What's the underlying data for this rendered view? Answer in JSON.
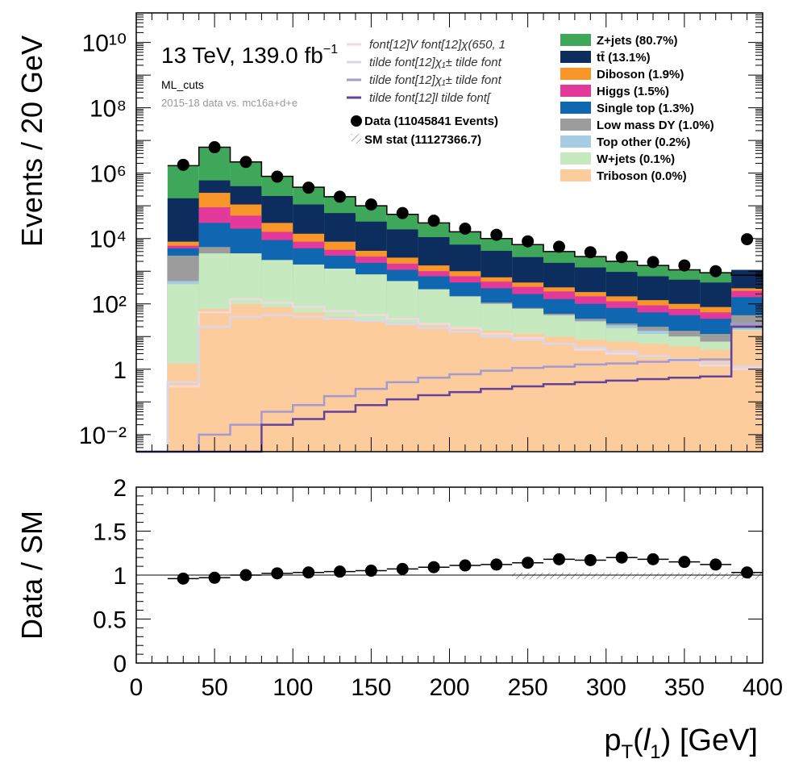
{
  "chart_data": [
    {
      "type": "histogram",
      "scale": "log",
      "ylabel": "Events / 20 GeV",
      "xlabel": "p_T(l_1) [GeV]",
      "xlim": [
        0,
        400
      ],
      "ylim": [
        0.003,
        80000000000
      ],
      "annotations": {
        "energy_lumi": "13 TeV, 139.0 fb⁻¹",
        "region": "ML_cuts",
        "dataset": "2015-18 data vs. mc16a+d+e"
      },
      "bin_edges": [
        0,
        20,
        40,
        60,
        80,
        100,
        120,
        140,
        160,
        180,
        200,
        220,
        240,
        260,
        280,
        300,
        320,
        340,
        360,
        380,
        400
      ],
      "stack_order_bottom_to_top": [
        "Triboson",
        "W+jets",
        "Top other",
        "Low mass DY",
        "Single top",
        "Higgs",
        "Diboson",
        "tt",
        "Z+jets"
      ],
      "stack": [
        {
          "name": "Z+jets (80.7%)",
          "key": "Z+jets",
          "color": "#3fa75a",
          "totals": [
            null,
            1700000,
            6200000,
            2200000,
            800000,
            370000,
            190000,
            100000,
            55000,
            30000,
            16000,
            10000,
            6500,
            4000,
            2800,
            2000,
            1500,
            1100,
            900,
            750
          ]
        },
        {
          "name": "tt̄ (13.1%)",
          "key": "tt",
          "color": "#0d2d5e",
          "totals": [
            null,
            170000,
            600000,
            400000,
            200000,
            110000,
            60000,
            33000,
            19000,
            11000,
            6500,
            4200,
            2700,
            1800,
            1300,
            950,
            700,
            550,
            450,
            1100
          ]
        },
        {
          "name": "Diboson (1.9%)",
          "key": "Diboson",
          "color": "#f8962a",
          "totals": [
            null,
            8000,
            250000,
            110000,
            30000,
            14000,
            8000,
            4200,
            2600,
            1500,
            1000,
            650,
            450,
            320,
            230,
            170,
            130,
            100,
            80,
            300
          ]
        },
        {
          "name": "Higgs (1.5%)",
          "key": "Higgs",
          "color": "#e2399a",
          "totals": [
            null,
            6000,
            90000,
            50000,
            16000,
            8000,
            4500,
            2800,
            1700,
            1000,
            700,
            480,
            330,
            240,
            170,
            120,
            90,
            70,
            55,
            250
          ]
        },
        {
          "name": "Single top (1.3%)",
          "key": "Single top",
          "color": "#0e67b0",
          "totals": [
            null,
            5000,
            30000,
            20000,
            9000,
            5000,
            3000,
            1800,
            1100,
            700,
            450,
            300,
            200,
            140,
            100,
            75,
            55,
            45,
            35,
            160
          ]
        },
        {
          "name": "Low mass DY (1.0%)",
          "key": "Low mass DY",
          "color": "#9c9c9c",
          "totals": [
            null,
            3000,
            5500,
            3500,
            2000,
            1400,
            900,
            650,
            430,
            280,
            170,
            110,
            75,
            50,
            35,
            25,
            20,
            15,
            12,
            45
          ]
        },
        {
          "name": "Top other (0.2%)",
          "key": "Top other",
          "color": "#a6cde4",
          "totals": [
            null,
            500,
            900,
            800,
            600,
            500,
            400,
            300,
            230,
            170,
            120,
            90,
            60,
            45,
            30,
            22,
            15,
            10,
            6,
            18
          ]
        },
        {
          "name": "W+jets (0.1%)",
          "key": "W+jets",
          "color": "#c7e9c0",
          "totals": [
            null,
            400,
            3500,
            3500,
            2200,
            1600,
            1200,
            800,
            500,
            280,
            170,
            100,
            70,
            45,
            28,
            18,
            12,
            10,
            7,
            16
          ]
        },
        {
          "name": "Triboson (0.0%)",
          "key": "Triboson",
          "color": "#fdcc9c",
          "totals": [
            null,
            1.5,
            70,
            100,
            80,
            55,
            40,
            30,
            25,
            22,
            18,
            15,
            12,
            10,
            8,
            7,
            6,
            5,
            4,
            15
          ]
        }
      ],
      "data_series": {
        "name": "Data (11045841 Events)",
        "x": [
          30,
          50,
          70,
          90,
          110,
          130,
          150,
          170,
          190,
          210,
          230,
          250,
          270,
          290,
          310,
          330,
          350,
          370,
          390
        ],
        "y": [
          1800000,
          6200000,
          2200000,
          780000,
          360000,
          190000,
          110000,
          60000,
          35000,
          20000,
          13000,
          8200,
          5600,
          3800,
          2700,
          1900,
          1500,
          1000,
          9500
        ]
      },
      "sm_stat": {
        "name": "SM stat (11127366.7)"
      },
      "signals": [
        {
          "name": "font[12]V   font[12]χ(650, 1",
          "color": "#f2d9e0",
          "values": [
            null,
            0.3,
            55,
            140,
            110,
            80,
            60,
            45,
            35,
            25,
            18,
            12,
            9,
            6,
            4,
            3,
            2.5,
            1.8,
            1.3,
            1.0
          ]
        },
        {
          "name": "tilde   font[12]χ₁±   tilde   font",
          "color": "#dcd6ea",
          "values": [
            null,
            0.4,
            20,
            40,
            45,
            40,
            35,
            30,
            24,
            18,
            14,
            10,
            8,
            6,
            4.5,
            3.5,
            2.5,
            2,
            1.6,
            1.2
          ]
        },
        {
          "name": "tilde   font[12]χ₁±   tilde   font",
          "color": "#a49ad0",
          "values": [
            null,
            0.003,
            0.01,
            0.02,
            0.05,
            0.08,
            0.15,
            0.25,
            0.4,
            0.55,
            0.7,
            0.9,
            1.1,
            1.2,
            1.4,
            1.5,
            1.7,
            1.9,
            2.0,
            25
          ]
        },
        {
          "name": "tilde   font[12]l   tilde   font[",
          "color": "#63429a",
          "values": [
            null,
            null,
            null,
            null,
            0.02,
            0.03,
            0.05,
            0.08,
            0.12,
            0.16,
            0.2,
            0.25,
            0.3,
            0.35,
            0.4,
            0.45,
            0.5,
            0.55,
            0.6,
            20
          ]
        }
      ],
      "yticks": [
        "10⁻²",
        "1",
        "10²",
        "10⁴",
        "10⁶",
        "10⁸",
        "10¹⁰"
      ]
    },
    {
      "type": "ratio",
      "ylabel": "Data / SM",
      "xlabel": "p_T(l_1) [GeV]",
      "xlim": [
        0,
        400
      ],
      "ylim": [
        0,
        2
      ],
      "x": [
        30,
        50,
        70,
        90,
        110,
        130,
        150,
        170,
        190,
        210,
        230,
        250,
        270,
        290,
        310,
        330,
        350,
        370,
        390
      ],
      "y": [
        0.96,
        0.97,
        1.0,
        1.02,
        1.03,
        1.04,
        1.05,
        1.07,
        1.09,
        1.11,
        1.12,
        1.14,
        1.18,
        1.17,
        1.2,
        1.18,
        1.15,
        1.12,
        1.03
      ],
      "yticks": [
        "0",
        "0.5",
        "1",
        "1.5",
        "2"
      ],
      "xticks": [
        "0",
        "50",
        "100",
        "150",
        "200",
        "250",
        "300",
        "350",
        "400"
      ]
    }
  ],
  "labels": {
    "main_ylabel": "Events / 20 GeV",
    "ratio_ylabel": "Data / SM",
    "xlabel_main": "p",
    "xlabel_sub": "T",
    "xlabel_tail": "(",
    "xlabel_l": "l",
    "xlabel_one": "1",
    "xlabel_rest": ") [GeV]",
    "energy": "13 TeV, 139.0 fb",
    "energy_sup": "−1",
    "region": "ML_cuts",
    "dataset": "2015-18 data vs. mc16a+d+e",
    "data_legend": "Data (11045841 Events)",
    "stat_legend": "SM stat (11127366.7)"
  }
}
